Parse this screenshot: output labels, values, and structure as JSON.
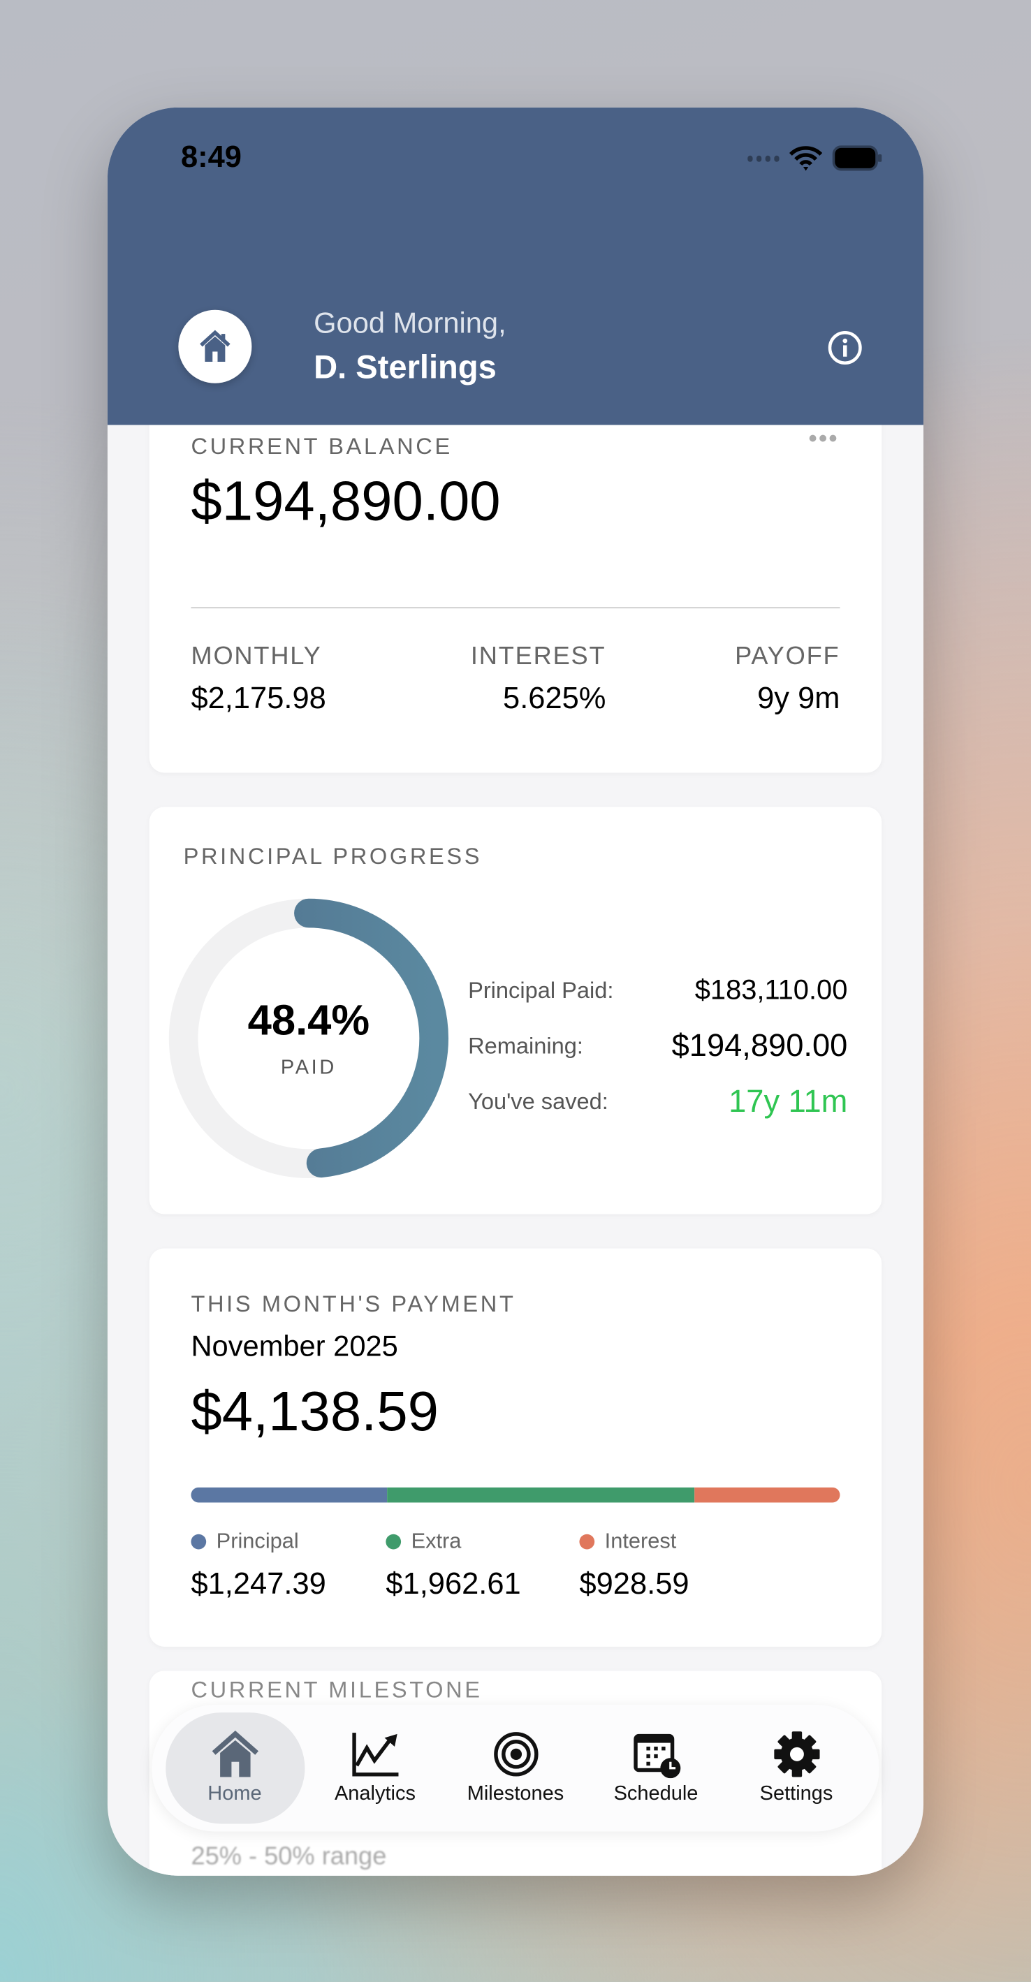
{
  "status_bar": {
    "time": "8:49"
  },
  "header": {
    "greeting": "Good Morning,",
    "user_name": "D. Sterlings"
  },
  "balance_card": {
    "title": "CURRENT BALANCE",
    "amount": "$194,890.00",
    "stats": [
      {
        "label": "MONTHLY",
        "value": "$2,175.98"
      },
      {
        "label": "INTEREST",
        "value": "5.625%"
      },
      {
        "label": "PAYOFF",
        "value": "9y 9m"
      }
    ]
  },
  "progress_card": {
    "title": "PRINCIPAL PROGRESS",
    "percent_label": "48.4%",
    "percent_value": 48.4,
    "paid_label": "PAID",
    "rows": [
      {
        "label": "Principal Paid:",
        "value": "$183,110.00"
      },
      {
        "label": "Remaining:",
        "value": "$194,890.00"
      },
      {
        "label": "You've saved:",
        "value": "17y 11m"
      }
    ]
  },
  "payment_card": {
    "title": "THIS MONTH'S PAYMENT",
    "month": "November 2025",
    "amount": "$4,138.59",
    "breakdown": [
      {
        "label": "Principal",
        "value": "$1,247.39",
        "amount": 1247.39,
        "color": "#5b77a3"
      },
      {
        "label": "Extra",
        "value": "$1,962.61",
        "amount": 1962.61,
        "color": "#3f9b6b"
      },
      {
        "label": "Interest",
        "value": "$928.59",
        "amount": 928.59,
        "color": "#e0775c"
      }
    ]
  },
  "milestone_card": {
    "title": "CURRENT MILESTONE",
    "range": "25% - 50% range"
  },
  "tabs": [
    {
      "label": "Home",
      "icon": "house-icon",
      "active": true
    },
    {
      "label": "Analytics",
      "icon": "chart-line-icon"
    },
    {
      "label": "Milestones",
      "icon": "target-icon"
    },
    {
      "label": "Schedule",
      "icon": "calendar-clock-icon"
    },
    {
      "label": "Settings",
      "icon": "gear-icon"
    }
  ],
  "colors": {
    "header": "#4a6186",
    "ring": "#587f99",
    "saved": "#2fc552"
  }
}
